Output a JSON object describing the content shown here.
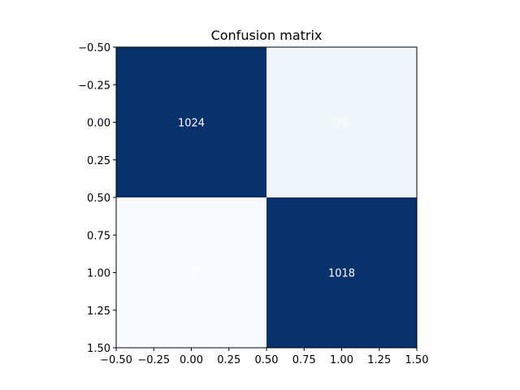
{
  "chart_data": {
    "type": "heatmap",
    "title": "Confusion matrix",
    "xlabel": "",
    "ylabel": "",
    "matrix": [
      [
        1024,
        76
      ],
      [
        52,
        1018
      ]
    ],
    "xlim": [
      -0.5,
      1.5
    ],
    "ylim": [
      1.5,
      -0.5
    ],
    "xticks": [
      "−0.50",
      "−0.25",
      "0.00",
      "0.25",
      "0.50",
      "0.75",
      "1.00",
      "1.25",
      "1.50"
    ],
    "yticks": [
      "−0.50",
      "−0.25",
      "0.00",
      "0.25",
      "0.50",
      "0.75",
      "1.00",
      "1.25",
      "1.50"
    ],
    "colormap": "Blues",
    "color_low": "#f7fbff",
    "color_high": "#08306b",
    "grid": false,
    "legend": "none"
  }
}
